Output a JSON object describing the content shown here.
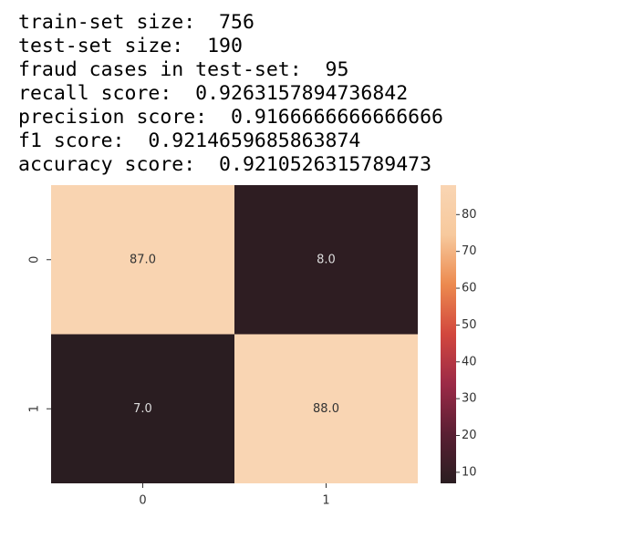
{
  "output_lines": [
    "train-set size:  756",
    "test-set size:  190",
    "fraud cases in test-set:  95",
    "recall score:  0.9263157894736842",
    "precision score:  0.9166666666666666",
    "f1 score:  0.9214659685863874",
    "accuracy score:  0.9210526315789473"
  ],
  "chart_data": {
    "type": "heatmap",
    "x_categories": [
      "0",
      "1"
    ],
    "y_categories": [
      "0",
      "1"
    ],
    "values": [
      [
        87,
        8
      ],
      [
        7,
        88
      ]
    ],
    "value_labels": [
      [
        "87.0",
        "8.0"
      ],
      [
        "7.0",
        "88.0"
      ]
    ],
    "clim": [
      7,
      88
    ],
    "colorbar_ticks": [
      10,
      20,
      30,
      40,
      50,
      60,
      70,
      80
    ],
    "colormap": [
      "#2a1d21",
      "#5a1f33",
      "#9c2a47",
      "#d2473e",
      "#ec8a4f",
      "#f7c99d",
      "#f9d5b3"
    ]
  }
}
